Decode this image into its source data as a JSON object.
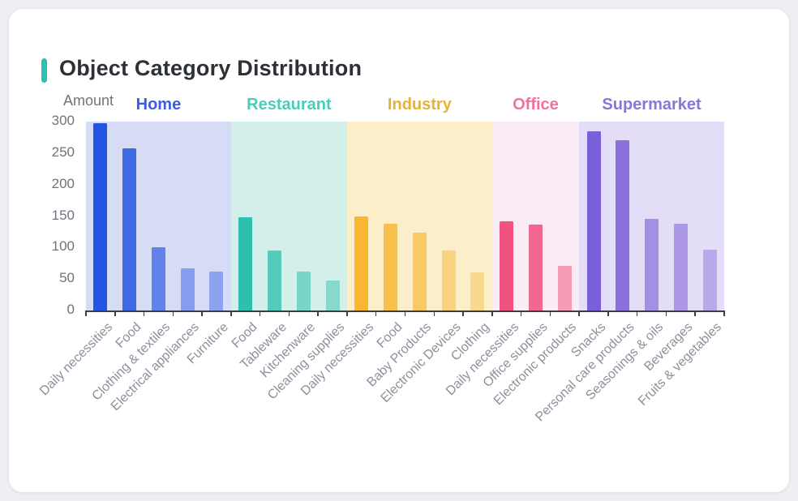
{
  "card": {
    "title": "Object Category Distribution",
    "accent_color": "#2ebfb4"
  },
  "chart_data": {
    "type": "bar",
    "title": "Object Category Distribution",
    "ylabel": "Amount",
    "xlabel": "",
    "ylim": [
      0,
      300
    ],
    "yticks": [
      0,
      50,
      100,
      150,
      200,
      250,
      300
    ],
    "grid": false,
    "legend_position": "top-inline-group-headers",
    "groups": [
      {
        "name": "Home",
        "color": "#2355e2",
        "label_color": "#3d5ce2",
        "band_color": "#d6dcf6",
        "categories": [
          "Daily necessities",
          "Food",
          "Clothing & textiles",
          "Electrical appliances",
          "Furniture"
        ],
        "values": [
          298,
          258,
          100,
          67,
          62
        ],
        "bar_opacities": [
          1,
          0.85,
          0.66,
          0.46,
          0.41
        ]
      },
      {
        "name": "Restaurant",
        "color": "#2fc0ad",
        "label_color": "#4accbb",
        "band_color": "#d2efe9",
        "categories": [
          "Food",
          "Tableware",
          "Kitchenware",
          "Cleaning supplies"
        ],
        "values": [
          148,
          95,
          62,
          48
        ],
        "bar_opacities": [
          1,
          0.76,
          0.55,
          0.46
        ]
      },
      {
        "name": "Industry",
        "color": "#f7b733",
        "label_color": "#e8b137",
        "band_color": "#fbeec9",
        "categories": [
          "Daily necessities",
          "Food",
          "Baby Products",
          "Electronic Devices",
          "Clothing"
        ],
        "values": [
          150,
          138,
          124,
          95,
          61
        ],
        "bar_opacities": [
          1,
          0.85,
          0.68,
          0.5,
          0.38
        ]
      },
      {
        "name": "Office",
        "color": "#f1527f",
        "label_color": "#f2729a",
        "band_color": "#faecf5",
        "categories": [
          "Daily necessities",
          "Office supplies",
          "Electronic products"
        ],
        "values": [
          141,
          137,
          71
        ],
        "bar_opacities": [
          1,
          0.87,
          0.52
        ]
      },
      {
        "name": "Supermarket",
        "color": "#7b5fd6",
        "label_color": "#8a75d9",
        "band_color": "#e4ddf7",
        "categories": [
          "Snacks",
          "Personal care products",
          "Seasonings & oils",
          "Beverages",
          "Fruits & vegetables"
        ],
        "values": [
          285,
          270,
          146,
          138,
          97
        ],
        "bar_opacities": [
          1,
          0.87,
          0.61,
          0.54,
          0.41
        ]
      }
    ]
  }
}
